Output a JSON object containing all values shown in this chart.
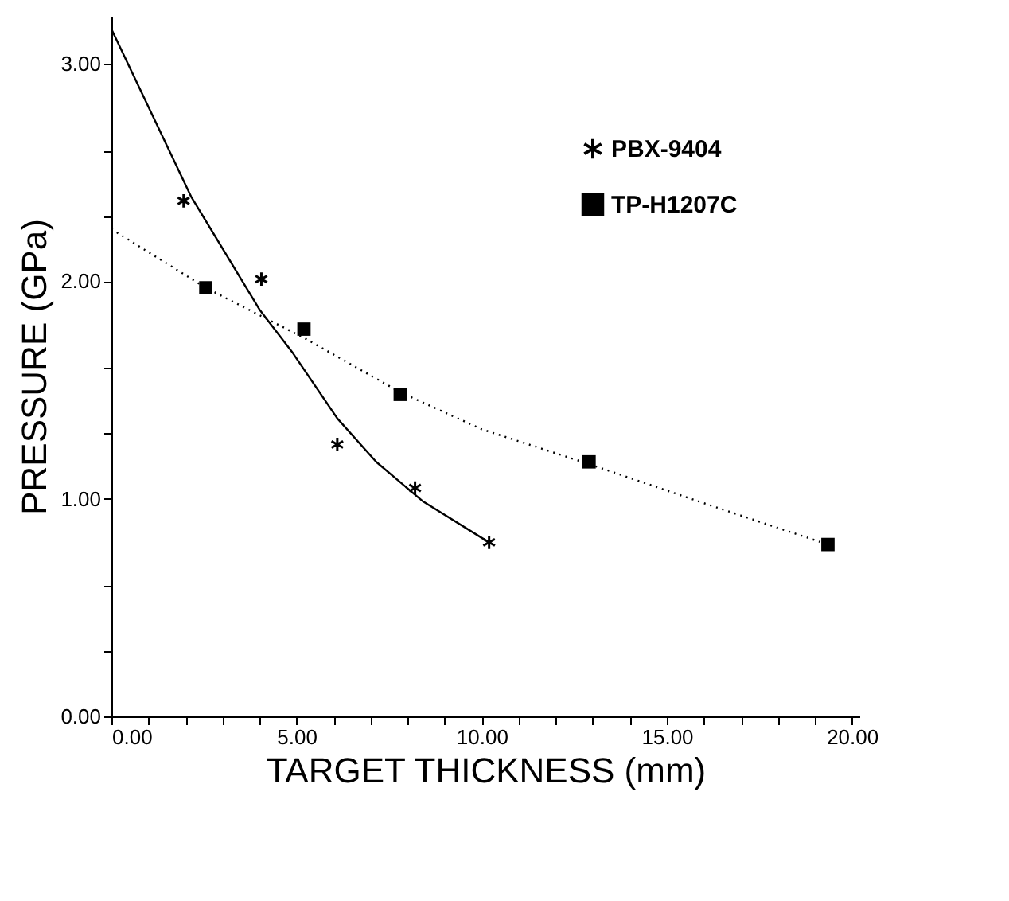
{
  "chart_data": {
    "type": "scatter",
    "xlabel": "TARGET THICKNESS (mm)",
    "ylabel": "PRESSURE (GPa)",
    "xlim": [
      0,
      20.2
    ],
    "ylim": [
      0,
      3.22
    ],
    "xticks": [
      {
        "value": 0,
        "label": "0.00"
      },
      {
        "value": 1,
        "label": null
      },
      {
        "value": 2,
        "label": null
      },
      {
        "value": 3,
        "label": null
      },
      {
        "value": 4,
        "label": null
      },
      {
        "value": 5,
        "label": "5.00"
      },
      {
        "value": 6,
        "label": null
      },
      {
        "value": 7,
        "label": null
      },
      {
        "value": 8,
        "label": null
      },
      {
        "value": 9,
        "label": null
      },
      {
        "value": 10,
        "label": "10.00"
      },
      {
        "value": 11,
        "label": null
      },
      {
        "value": 12,
        "label": null
      },
      {
        "value": 13,
        "label": null
      },
      {
        "value": 14,
        "label": null
      },
      {
        "value": 15,
        "label": "15.00"
      },
      {
        "value": 16,
        "label": null
      },
      {
        "value": 17,
        "label": null
      },
      {
        "value": 18,
        "label": null
      },
      {
        "value": 19,
        "label": null
      },
      {
        "value": 20,
        "label": "20.00"
      }
    ],
    "yticks": [
      {
        "value": 0,
        "label": "0.00"
      },
      {
        "value": 0.3,
        "label": null
      },
      {
        "value": 0.6,
        "label": null
      },
      {
        "value": 1,
        "label": "1.00"
      },
      {
        "value": 1.3,
        "label": null
      },
      {
        "value": 1.6,
        "label": null
      },
      {
        "value": 2,
        "label": "2.00"
      },
      {
        "value": 2.3,
        "label": null
      },
      {
        "value": 2.6,
        "label": null
      },
      {
        "value": 3,
        "label": "3.00"
      }
    ],
    "grid": false,
    "legend": "top right",
    "series": [
      {
        "name": "PBX-9404",
        "marker": "cross",
        "color": "#000000",
        "x": [
          1.95,
          4.05,
          6.1,
          8.2,
          10.2
        ],
        "values": [
          2.37,
          2.01,
          1.25,
          1.05,
          0.8
        ]
      },
      {
        "name": "TP-H1207C",
        "marker": "square",
        "color": "#000000",
        "x": [
          2.55,
          5.2,
          7.8,
          12.9,
          19.35
        ],
        "values": [
          1.97,
          1.78,
          1.48,
          1.17,
          0.79
        ]
      },
      {
        "type": "line",
        "marker": "none",
        "line_style": "solid",
        "color": "#000000",
        "x": [
          0,
          2.15,
          4.0,
          4.9,
          6.1,
          7.15,
          8.4,
          10.1
        ],
        "values": [
          3.16,
          2.39,
          1.87,
          1.67,
          1.37,
          1.17,
          0.99,
          0.81
        ]
      },
      {
        "type": "line",
        "marker": "none",
        "line_style": "dotted",
        "color": "#000000",
        "x": [
          0,
          2.55,
          5.2,
          7.8,
          10,
          12.9,
          16,
          19.35
        ],
        "values": [
          2.24,
          1.97,
          1.74,
          1.49,
          1.32,
          1.16,
          0.98,
          0.79
        ]
      }
    ]
  }
}
